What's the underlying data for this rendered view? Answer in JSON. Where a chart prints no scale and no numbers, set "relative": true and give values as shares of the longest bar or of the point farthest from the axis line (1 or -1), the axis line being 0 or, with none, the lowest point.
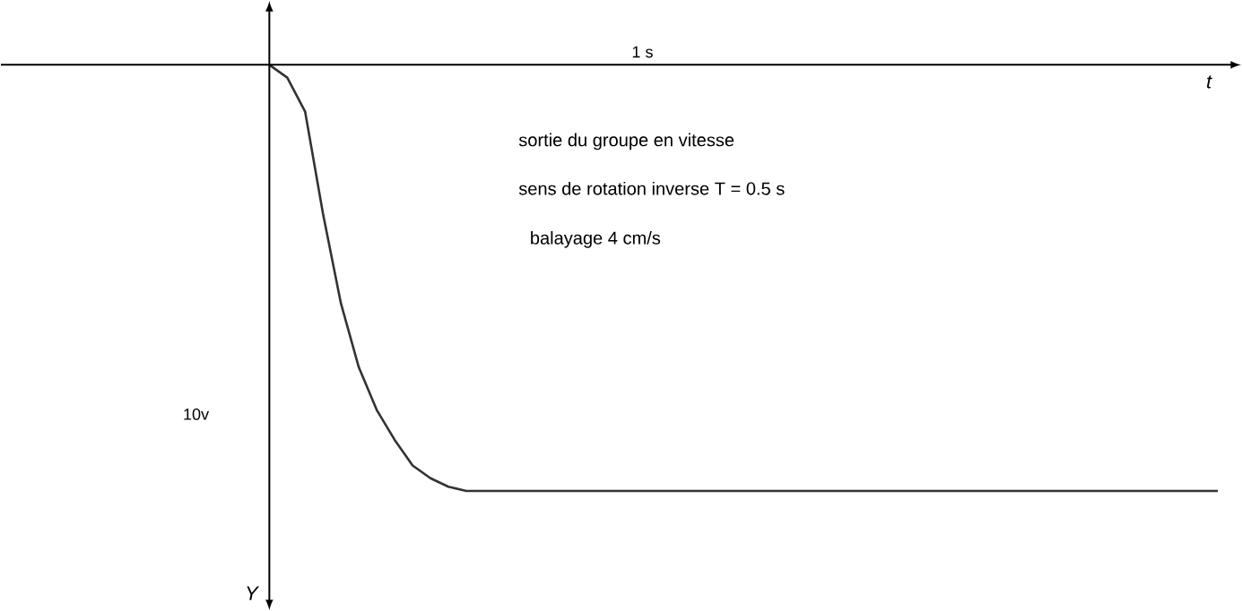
{
  "chart_data": {
    "type": "line",
    "relative": true,
    "xlabel": "t",
    "ylabel": "Y",
    "annotations": [
      "1 s",
      "10v",
      "sortie du groupe en vitesse",
      "sens de rotation inverse T = 0.5 s",
      "balayage 4 cm/s"
    ],
    "categories": [
      null,
      null,
      null,
      null,
      null,
      null,
      null,
      null,
      null,
      null,
      null,
      null,
      null,
      null,
      null,
      null,
      null,
      null,
      null,
      null,
      null,
      null,
      null,
      null,
      null,
      null,
      null,
      null,
      null,
      null,
      null,
      null,
      null,
      null,
      null,
      null,
      null,
      null,
      null,
      null,
      null,
      null,
      null,
      null,
      null,
      null,
      null,
      null,
      null,
      null,
      null,
      null,
      null,
      null
    ],
    "values": [
      0,
      -0.03,
      -0.11,
      -0.35,
      -0.56,
      -0.71,
      -0.81,
      -0.88,
      -0.94,
      -0.97,
      -0.99,
      -1,
      -1,
      -1,
      -1,
      -1,
      -1,
      -1,
      -1,
      -1,
      -1,
      -1,
      -1,
      -1,
      -1,
      -1,
      -1,
      -1,
      -1,
      -1,
      -1,
      -1,
      -1,
      -1,
      -1,
      -1,
      -1,
      -1,
      -1,
      -1,
      -1,
      -1,
      -1,
      -1,
      -1,
      -1,
      -1,
      -1,
      -1,
      -1,
      -1,
      -1,
      -1,
      -1
    ],
    "color": "#333333"
  }
}
